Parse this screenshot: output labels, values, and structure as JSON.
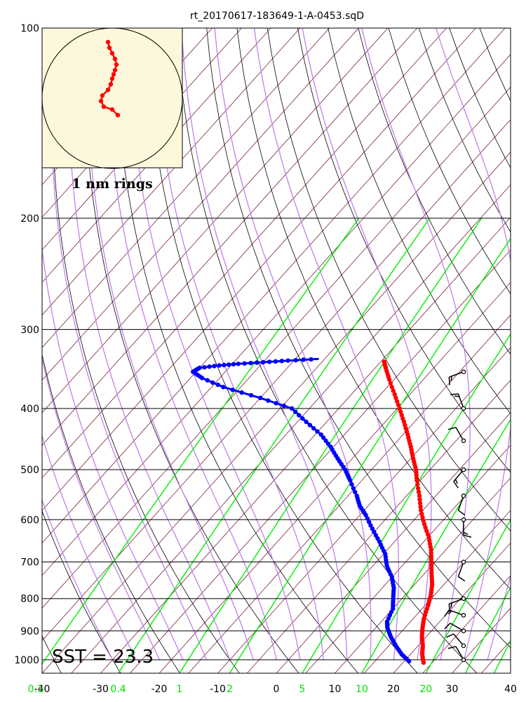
{
  "chart_data": {
    "type": "skew-t",
    "title": "rt_20170617-183649-1-A-0453.sqD",
    "pressure_ticks": [
      "100",
      "200",
      "300",
      "400",
      "500",
      "600",
      "700",
      "800",
      "900",
      "1000"
    ],
    "temperature_ticks": [
      "-40",
      "-30",
      "-20",
      "-10",
      "0",
      "10",
      "20",
      "30",
      "40"
    ],
    "mixing_ratio_ticks": [
      "0.1",
      "0.4",
      "1",
      "2",
      "5",
      "10",
      "20"
    ],
    "p_range_hPa": [
      100,
      1050
    ],
    "t_range_bottom_C": [
      -40,
      40
    ],
    "sst_label": "SST = 23.3",
    "hodograph_label": "1 nm rings",
    "colors": {
      "temperature": "#ff0000",
      "dewpoint": "#0000ff",
      "dry_adiabats": "#000000",
      "moist_adiabats": "#c080f0",
      "isotherms": "#7a2040",
      "mixing_ratio": "#00ee00",
      "hodograph_bg": "#fdf8dc"
    },
    "temperature_profile": [
      [
        1010,
        23.5
      ],
      [
        980,
        22.0
      ],
      [
        950,
        20.8
      ],
      [
        920,
        19.3
      ],
      [
        890,
        18.0
      ],
      [
        860,
        16.8
      ],
      [
        820,
        15.5
      ],
      [
        790,
        14.4
      ],
      [
        760,
        13.0
      ],
      [
        730,
        11.2
      ],
      [
        700,
        9.4
      ],
      [
        670,
        7.5
      ],
      [
        640,
        5.2
      ],
      [
        610,
        2.4
      ],
      [
        580,
        -0.3
      ],
      [
        550,
        -2.8
      ],
      [
        520,
        -5.6
      ],
      [
        500,
        -7.4
      ],
      [
        480,
        -9.6
      ],
      [
        460,
        -11.8
      ],
      [
        440,
        -14.2
      ],
      [
        420,
        -16.8
      ],
      [
        400,
        -19.6
      ],
      [
        380,
        -22.6
      ],
      [
        360,
        -25.8
      ],
      [
        345,
        -28.2
      ],
      [
        335,
        -29.8
      ]
    ],
    "dewpoint_profile": [
      [
        1005,
        20.8
      ],
      [
        980,
        18.5
      ],
      [
        950,
        16.2
      ],
      [
        920,
        14.0
      ],
      [
        890,
        12.0
      ],
      [
        870,
        11.0
      ],
      [
        830,
        10.0
      ],
      [
        800,
        8.5
      ],
      [
        770,
        7.0
      ],
      [
        740,
        5.0
      ],
      [
        710,
        2.4
      ],
      [
        680,
        0.3
      ],
      [
        650,
        -2.6
      ],
      [
        620,
        -5.8
      ],
      [
        590,
        -9.0
      ],
      [
        570,
        -11.5
      ],
      [
        550,
        -13.5
      ],
      [
        520,
        -17.0
      ],
      [
        500,
        -19.5
      ],
      [
        480,
        -22.5
      ],
      [
        460,
        -25.5
      ],
      [
        440,
        -29.0
      ],
      [
        420,
        -33.5
      ],
      [
        400,
        -38.0
      ],
      [
        385,
        -45.0
      ],
      [
        370,
        -53.0
      ],
      [
        358,
        -58.0
      ],
      [
        350,
        -60.5
      ],
      [
        345,
        -60.0
      ],
      [
        342,
        -57.0
      ],
      [
        340,
        -54.0
      ],
      [
        338,
        -50.0
      ],
      [
        336,
        -46.0
      ],
      [
        334,
        -41.0
      ]
    ],
    "wind_barbs": [
      {
        "p": 1000,
        "dir": 330,
        "speed_kt": 10
      },
      {
        "p": 950,
        "dir": 320,
        "speed_kt": 10
      },
      {
        "p": 900,
        "dir": 300,
        "speed_kt": 10
      },
      {
        "p": 850,
        "dir": 290,
        "speed_kt": 15
      },
      {
        "p": 800,
        "dir": 250,
        "speed_kt": 15
      },
      {
        "p": 700,
        "dir": 200,
        "speed_kt": 10
      },
      {
        "p": 600,
        "dir": 180,
        "speed_kt": 15
      },
      {
        "p": 550,
        "dir": 200,
        "speed_kt": 10
      },
      {
        "p": 500,
        "dir": 220,
        "speed_kt": 15
      },
      {
        "p": 450,
        "dir": 330,
        "speed_kt": 10
      },
      {
        "p": 400,
        "dir": 340,
        "speed_kt": 15
      },
      {
        "p": 350,
        "dir": 250,
        "speed_kt": 15
      }
    ],
    "hodograph": [
      [
        0.2,
        0.6
      ],
      [
        0.0,
        0.4
      ],
      [
        -0.3,
        0.3
      ],
      [
        -0.4,
        0.1
      ],
      [
        -0.35,
        -0.1
      ],
      [
        -0.15,
        -0.3
      ],
      [
        -0.05,
        -0.5
      ],
      [
        0.0,
        -0.7
      ],
      [
        0.05,
        -0.85
      ],
      [
        0.1,
        -1.0
      ],
      [
        0.15,
        -1.2
      ],
      [
        0.1,
        -1.4
      ],
      [
        0.0,
        -1.6
      ],
      [
        -0.1,
        -1.8
      ],
      [
        -0.15,
        -2.0
      ]
    ]
  }
}
